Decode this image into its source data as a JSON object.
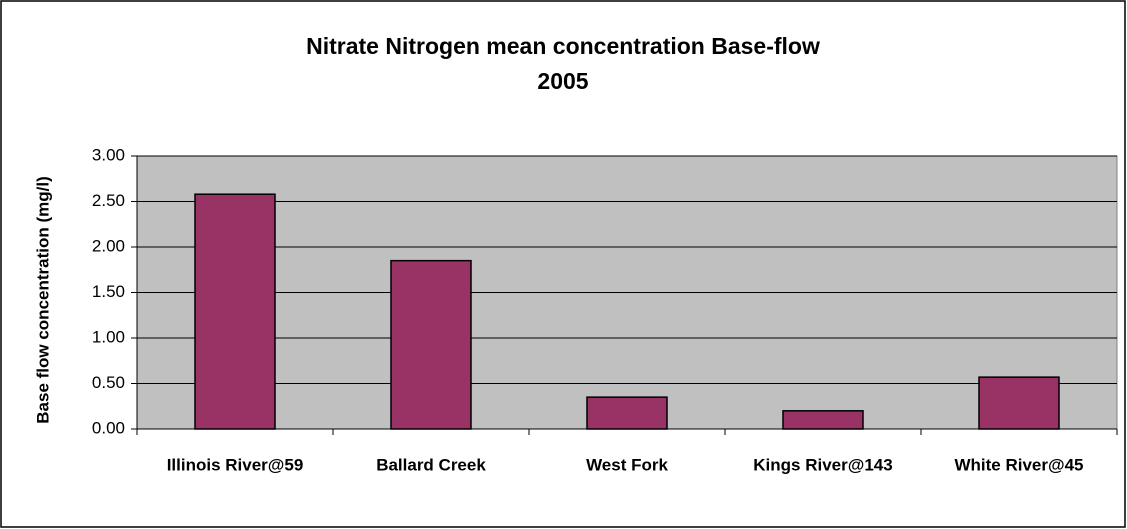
{
  "chart_data": {
    "type": "bar",
    "title": [
      "Nitrate Nitrogen mean concentration Base-flow",
      "2005"
    ],
    "y_label": "Base flow concentration (mg/l)",
    "categories": [
      "Illinois River@59",
      "Ballard Creek",
      "West Fork",
      "Kings River@143",
      "White River@45"
    ],
    "values": [
      2.58,
      1.85,
      0.35,
      0.2,
      0.57
    ],
    "color": "#993366",
    "ylim": [
      0,
      3
    ],
    "yticks": [
      {
        "value": 0,
        "label": "0.00"
      },
      {
        "value": 0.5,
        "label": "0.50"
      },
      {
        "value": 1,
        "label": "1.00"
      },
      {
        "value": 1.5,
        "label": "1.50"
      },
      {
        "value": 2,
        "label": "2.00"
      },
      {
        "value": 2.5,
        "label": "2.50"
      },
      {
        "value": 3,
        "label": "3.00"
      }
    ],
    "grid": true
  }
}
